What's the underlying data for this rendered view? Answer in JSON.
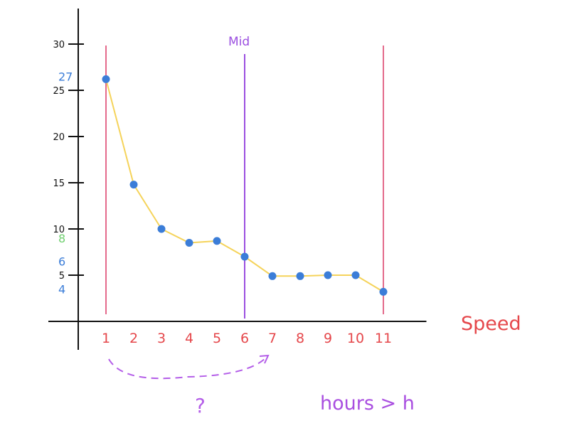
{
  "chart_data": {
    "type": "line",
    "title": "",
    "xlabel": "Speed",
    "ylabel": "",
    "x": [
      1,
      2,
      3,
      4,
      5,
      6,
      7,
      8,
      9,
      10,
      11
    ],
    "x_tick_labels": [
      "1",
      "2",
      "3",
      "4",
      "5",
      "6",
      "7",
      "8",
      "9",
      "10",
      "11"
    ],
    "y_ticks": [
      5,
      10,
      15,
      20,
      25,
      30
    ],
    "y_tick_labels": [
      "5",
      "10",
      "15",
      "20",
      "25",
      "30"
    ],
    "xlim": [
      -1,
      12.5
    ],
    "ylim": [
      -5,
      35
    ],
    "series": [
      {
        "values": [
          26.2,
          14.8,
          10.0,
          8.5,
          8.7,
          7.0,
          4.9,
          4.9,
          5.0,
          5.0,
          3.2
        ]
      }
    ],
    "grid": false,
    "legend": "none",
    "vertical_markers": [
      {
        "x": 1,
        "color": "#e46a8b"
      },
      {
        "x": 6,
        "label": "Mid",
        "color": "#9b4fe0"
      },
      {
        "x": 11,
        "color": "#e46a8b"
      }
    ],
    "side_annotations": [
      {
        "text": "27",
        "y": 26.5,
        "color": "#3b7dd8"
      },
      {
        "text": "8",
        "y": 9.0,
        "color": "#6fcf6f"
      },
      {
        "text": "6",
        "y": 6.5,
        "color": "#3b7dd8"
      },
      {
        "text": "4",
        "y": 3.5,
        "color": "#3b7dd8"
      }
    ],
    "arrow_annotation": {
      "from_x": 1,
      "to_x": 7,
      "label": "?",
      "color": "#b45ee8"
    },
    "note": "hours > h",
    "colors": {
      "line": "#f5d35a",
      "points": "#3b7dd8",
      "axis": "#111111",
      "x_tick_labels": "#e5474b",
      "xlabel": "#e5474b",
      "note": "#a94ee0"
    }
  }
}
